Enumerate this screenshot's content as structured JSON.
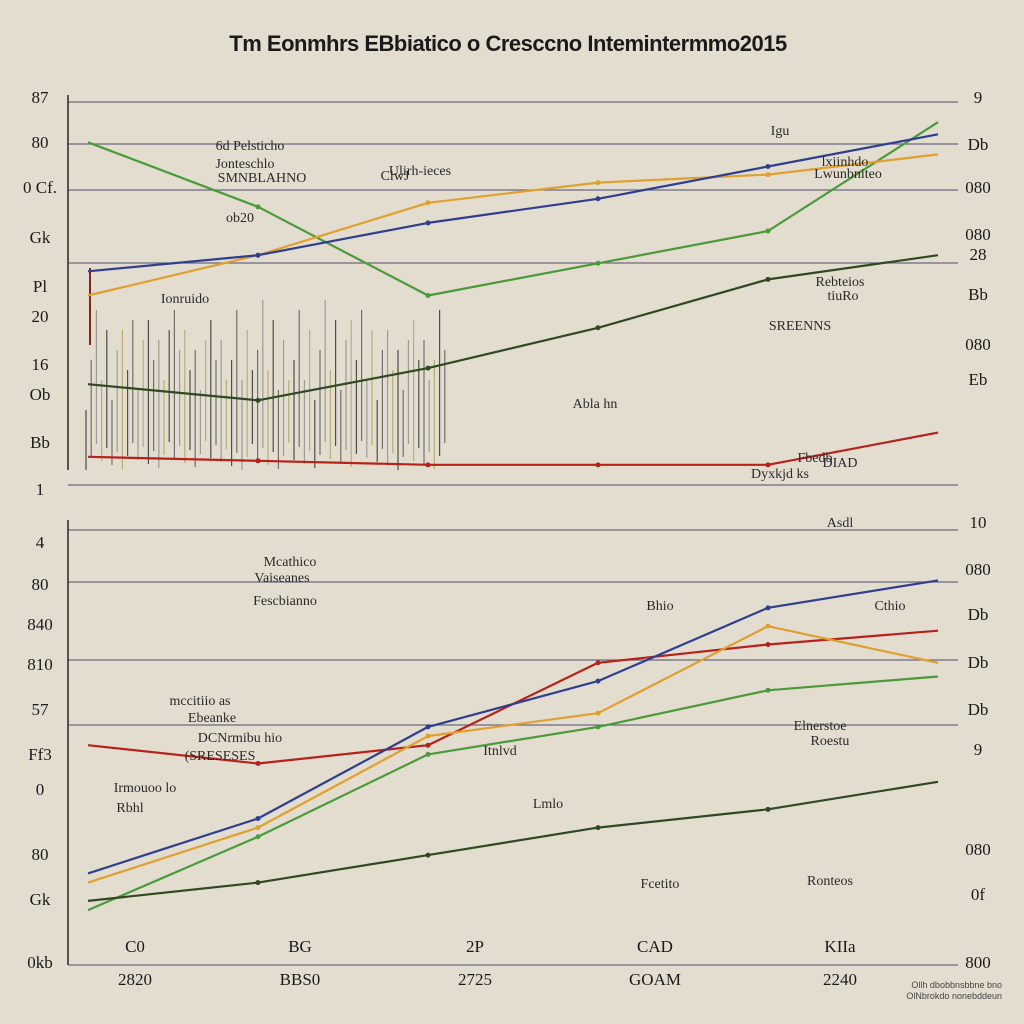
{
  "chart_data": [
    {
      "type": "line",
      "title": "Tm Eonmhrs EBbiatico o Cresccno Intemintermmo2015",
      "ylabels_left": [
        "87",
        "80",
        "0 Cf.",
        "Gk",
        "Pl",
        "20",
        "16",
        "Ob",
        "Bb",
        "1"
      ],
      "ylabels_right": [
        "9",
        "Db",
        "080",
        "080",
        "28",
        "Bb",
        "080",
        "Eb"
      ],
      "annotations": [
        "6d Pelsticho",
        "Jonteschlo",
        "SMNBLAHNO",
        "Ulirh-ieces",
        "ClwJ",
        "ob20",
        "Ionruido",
        "Lwunbniteo",
        "lxiinhdo",
        "tiuRo",
        "Abla hn",
        "SREENNS",
        "Igu",
        "Rebteios",
        "Dyxkjd ks",
        "Fbedb",
        "DIAD"
      ],
      "series": [
        {
          "color": "#4a9a3a",
          "values": [
            100,
            84,
            62,
            70,
            78,
            105
          ]
        },
        {
          "color": "#e0a030",
          "values": [
            62,
            72,
            85,
            90,
            92,
            97
          ]
        },
        {
          "color": "#2e3f8f",
          "values": [
            68,
            72,
            80,
            86,
            94,
            102
          ]
        },
        {
          "color": "#2e4a1e",
          "values": [
            40,
            36,
            44,
            54,
            66,
            72
          ]
        },
        {
          "color": "#b8201a",
          "values": [
            22,
            21,
            20,
            20,
            20,
            28
          ]
        }
      ]
    },
    {
      "type": "line",
      "ylabels_left": [
        "4",
        "80",
        "840",
        "810",
        "57",
        "Ff3",
        "0",
        "80",
        "Gk",
        "0kb"
      ],
      "ylabels_right": [
        "10",
        "080",
        "Db",
        "Db",
        "Db",
        "9",
        "080",
        "0f",
        "800"
      ],
      "xlabels": [
        "C0",
        "BG",
        "2P",
        "CAD",
        "KIIa"
      ],
      "xlabels_bottom": [
        "2820",
        "BBS0",
        "2725",
        "GOAM",
        "2240"
      ],
      "annotations": [
        "Mcathico",
        "Vaiseanes",
        "Fescbianno",
        "mccitiio as",
        "Ebeanke",
        "DCNrmibu hio",
        "(SRESESES",
        "Irmouoo lo",
        "Rbhl",
        "Bhio",
        "Itnlvd",
        "Lmlo",
        "Fcetito",
        "Ronteos",
        "Roestu",
        "Elnerstoe",
        "Cthio",
        "Asdl"
      ],
      "series": [
        {
          "color": "#b8201a",
          "values": [
            48,
            44,
            48,
            66,
            70,
            73
          ]
        },
        {
          "color": "#2e3f8f",
          "values": [
            20,
            32,
            52,
            62,
            78,
            84
          ]
        },
        {
          "color": "#e0a030",
          "values": [
            18,
            30,
            50,
            55,
            74,
            66
          ]
        },
        {
          "color": "#4a9a3a",
          "values": [
            12,
            28,
            46,
            52,
            60,
            63
          ]
        },
        {
          "color": "#2e4a1e",
          "values": [
            14,
            18,
            24,
            30,
            34,
            40
          ]
        }
      ]
    }
  ],
  "footnote": [
    "Ollh dbobbnsbbne bno",
    "OlNbrokdo nonebddeun"
  ]
}
